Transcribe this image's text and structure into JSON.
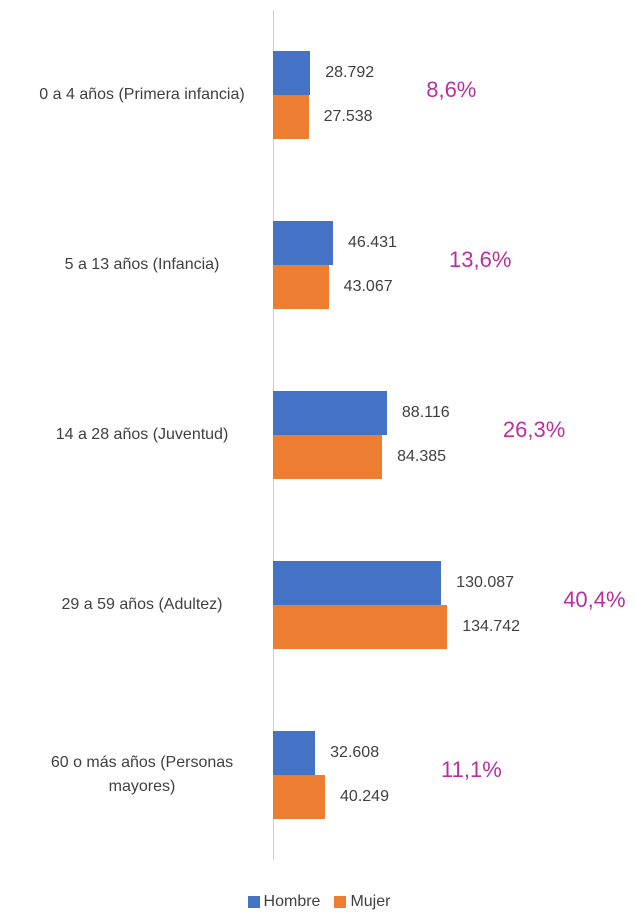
{
  "chart_data": {
    "type": "bar",
    "orientation": "horizontal",
    "categories": [
      "0 a 4 años (Primera infancia)",
      "5 a 13 años (Infancia)",
      "14 a 28 años (Juventud)",
      "29 a 59 años (Adultez)",
      "60 o más años (Personas mayores)"
    ],
    "series": [
      {
        "name": "Hombre",
        "color": "#4472c4",
        "values": [
          28792,
          46431,
          88116,
          130087,
          32608
        ],
        "value_labels": [
          "28.792",
          "46.431",
          "88.116",
          "130.087",
          "32.608"
        ]
      },
      {
        "name": "Mujer",
        "color": "#ed7d31",
        "values": [
          27538,
          43067,
          84385,
          134742,
          40249
        ],
        "value_labels": [
          "27.538",
          "43.067",
          "84.385",
          "134.742",
          "40.249"
        ]
      }
    ],
    "annotations": [
      "8,6%",
      "13,6%",
      "26,3%",
      "40,4%",
      "11,1%"
    ],
    "xlim": [
      0,
      280000
    ]
  }
}
